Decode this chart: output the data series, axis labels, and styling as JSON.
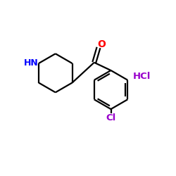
{
  "bg_color": "#ffffff",
  "nh_color": "#0000ff",
  "o_color": "#ff0000",
  "cl_color": "#9900cc",
  "hcl_color": "#9900cc",
  "bond_color": "#000000",
  "label_nh": "HN",
  "label_o": "O",
  "label_cl": "Cl",
  "label_hcl": "HCl",
  "figsize": [
    2.5,
    2.5
  ],
  "dpi": 100,
  "lw": 1.6
}
